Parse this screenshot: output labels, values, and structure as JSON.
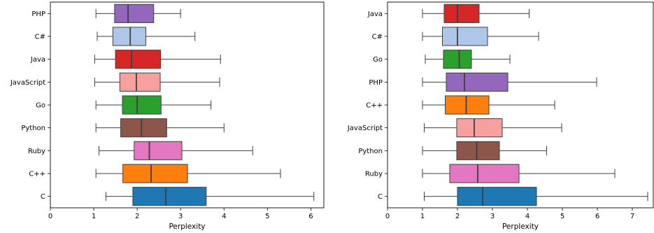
{
  "chart_data": [
    {
      "type": "boxplot",
      "orientation": "horizontal",
      "xlabel": "Perplexity",
      "ylabel": "",
      "xlim": [
        0,
        6.3
      ],
      "xticks": [
        0,
        1,
        2,
        3,
        4,
        5,
        6
      ],
      "categories": [
        "PHP",
        "C#",
        "Java",
        "JavaScript",
        "Go",
        "Python",
        "Ruby",
        "C++",
        "C"
      ],
      "boxes": [
        {
          "label": "PHP",
          "whislo": 1.05,
          "q1": 1.48,
          "med": 1.79,
          "q3": 2.38,
          "whishi": 3.0,
          "color": "#9467bd"
        },
        {
          "label": "C#",
          "whislo": 1.08,
          "q1": 1.44,
          "med": 1.84,
          "q3": 2.2,
          "whishi": 3.33,
          "color": "#aec7e8"
        },
        {
          "label": "Java",
          "whislo": 1.02,
          "q1": 1.5,
          "med": 1.87,
          "q3": 2.54,
          "whishi": 3.92,
          "color": "#d62728"
        },
        {
          "label": "JavaScript",
          "whislo": 1.02,
          "q1": 1.6,
          "med": 1.98,
          "q3": 2.53,
          "whishi": 3.9,
          "color": "#f7a0a0"
        },
        {
          "label": "Go",
          "whislo": 1.05,
          "q1": 1.66,
          "med": 2.0,
          "q3": 2.55,
          "whishi": 3.7,
          "color": "#2ca02c"
        },
        {
          "label": "Python",
          "whislo": 1.05,
          "q1": 1.62,
          "med": 2.1,
          "q3": 2.68,
          "whishi": 4.0,
          "color": "#8c564b"
        },
        {
          "label": "Ruby",
          "whislo": 1.12,
          "q1": 1.93,
          "med": 2.28,
          "q3": 3.03,
          "whishi": 4.66,
          "color": "#e377c2"
        },
        {
          "label": "C++",
          "whislo": 1.05,
          "q1": 1.67,
          "med": 2.32,
          "q3": 3.16,
          "whishi": 5.3,
          "color": "#ff7f0e"
        },
        {
          "label": "C",
          "whislo": 1.28,
          "q1": 1.9,
          "med": 2.66,
          "q3": 3.59,
          "whishi": 6.07,
          "color": "#1f77b4"
        }
      ]
    },
    {
      "type": "boxplot",
      "orientation": "horizontal",
      "xlabel": "Perplexity",
      "ylabel": "",
      "xlim": [
        0,
        7.6
      ],
      "xticks": [
        0,
        1,
        2,
        3,
        4,
        5,
        6,
        7
      ],
      "categories": [
        "Java",
        "C#",
        "Go",
        "PHP",
        "C++",
        "JavaScript",
        "Python",
        "Ruby",
        "C"
      ],
      "boxes": [
        {
          "label": "Java",
          "whislo": 1.0,
          "q1": 1.62,
          "med": 2.0,
          "q3": 2.62,
          "whishi": 4.05,
          "color": "#d62728"
        },
        {
          "label": "C#",
          "whislo": 1.0,
          "q1": 1.57,
          "med": 2.0,
          "q3": 2.86,
          "whishi": 4.32,
          "color": "#aec7e8"
        },
        {
          "label": "Go",
          "whislo": 1.08,
          "q1": 1.6,
          "med": 2.05,
          "q3": 2.4,
          "whishi": 3.5,
          "color": "#2ca02c"
        },
        {
          "label": "PHP",
          "whislo": 1.0,
          "q1": 1.68,
          "med": 2.2,
          "q3": 3.44,
          "whishi": 5.98,
          "color": "#9467bd"
        },
        {
          "label": "C++",
          "whislo": 1.0,
          "q1": 1.65,
          "med": 2.25,
          "q3": 2.9,
          "whishi": 4.78,
          "color": "#ff7f0e"
        },
        {
          "label": "JavaScript",
          "whislo": 1.05,
          "q1": 1.98,
          "med": 2.48,
          "q3": 3.28,
          "whishi": 4.98,
          "color": "#f7a0a0"
        },
        {
          "label": "Python",
          "whislo": 1.0,
          "q1": 1.98,
          "med": 2.55,
          "q3": 3.2,
          "whishi": 4.55,
          "color": "#8c564b"
        },
        {
          "label": "Ruby",
          "whislo": 1.0,
          "q1": 1.78,
          "med": 2.58,
          "q3": 3.76,
          "whishi": 6.5,
          "color": "#e377c2"
        },
        {
          "label": "C",
          "whislo": 1.05,
          "q1": 2.0,
          "med": 2.72,
          "q3": 4.26,
          "whishi": 7.44,
          "color": "#1f77b4"
        }
      ]
    }
  ]
}
